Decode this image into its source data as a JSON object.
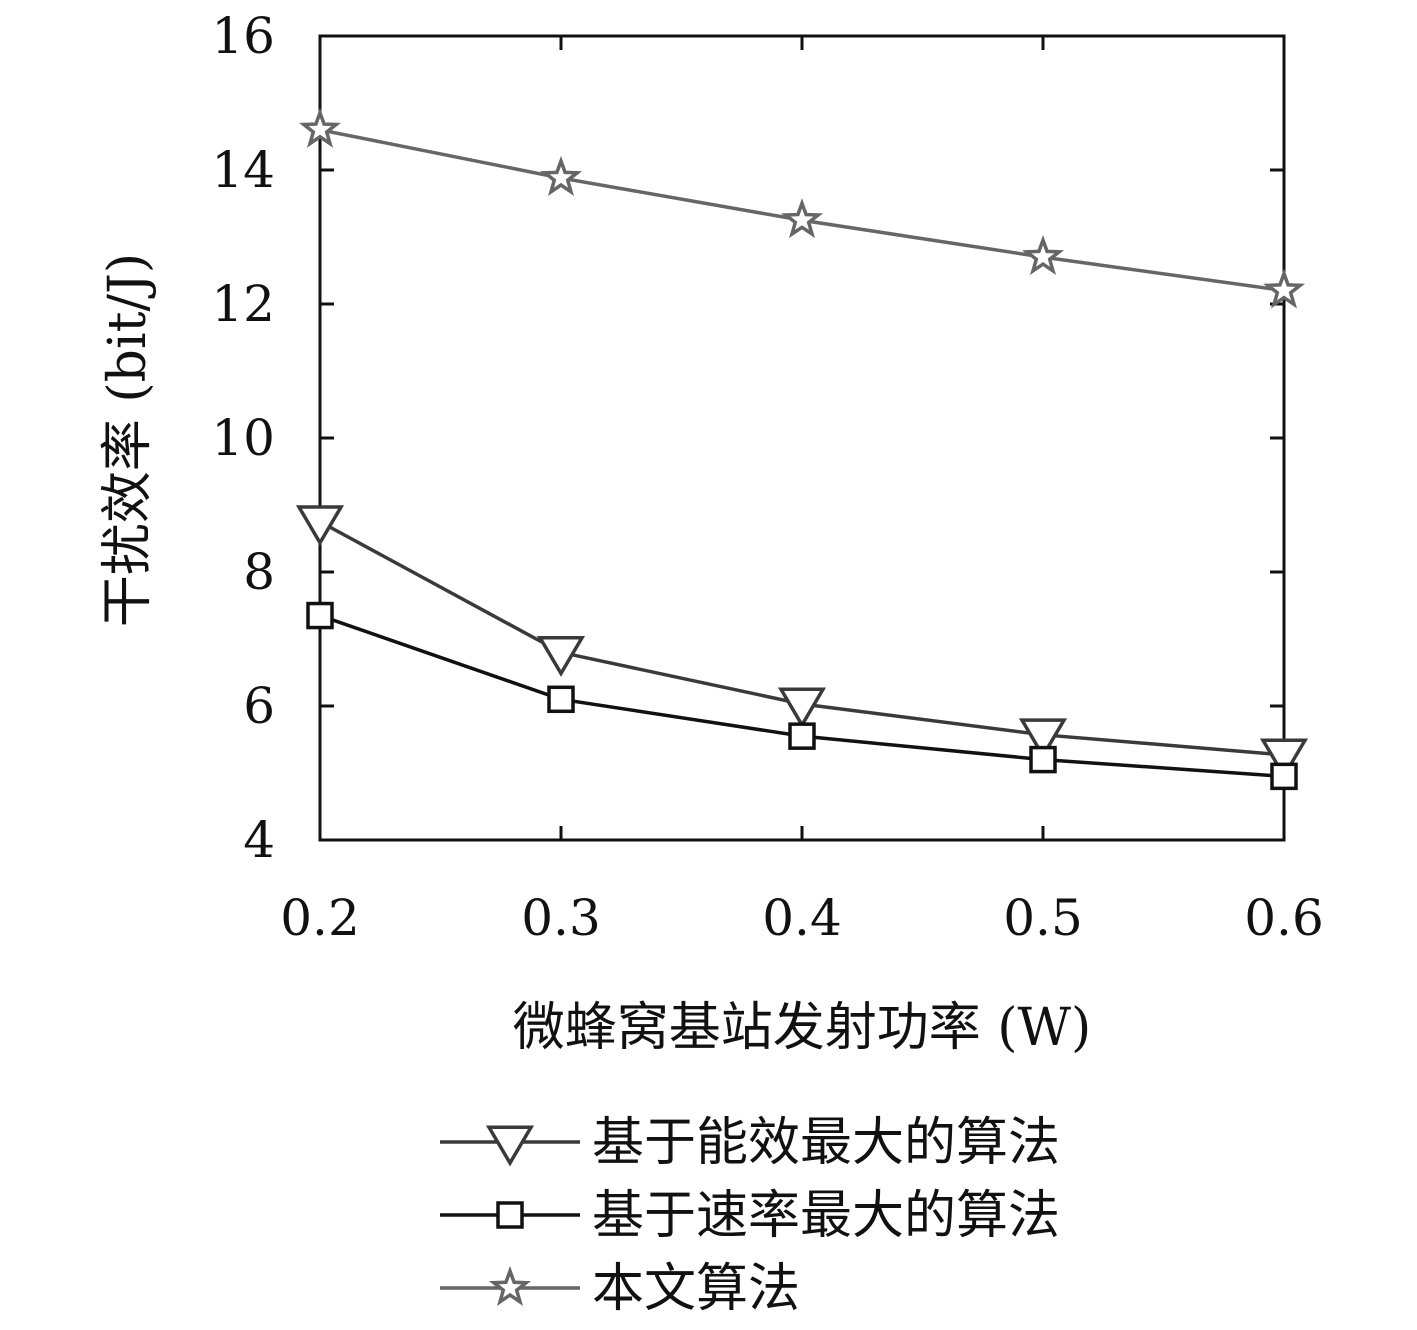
{
  "chart_data": {
    "type": "line",
    "x": [
      0.2,
      0.3,
      0.4,
      0.5,
      0.6
    ],
    "xticks": [
      "0.2",
      "0.3",
      "0.4",
      "0.5",
      "0.6"
    ],
    "yticks": [
      "4",
      "6",
      "8",
      "10",
      "12",
      "14",
      "16"
    ],
    "xlim": [
      0.2,
      0.6
    ],
    "ylim": [
      4,
      16
    ],
    "xlabel": "微蜂窝基站发射功率 (W)",
    "ylabel": "干扰效率 (bit/J)",
    "grid": false,
    "legend_position": "below",
    "series": [
      {
        "name": "基于能效最大的算法",
        "marker": "triangle-down",
        "color": "#3a3a3a",
        "values": [
          8.75,
          6.8,
          6.03,
          5.57,
          5.27
        ]
      },
      {
        "name": "基于速率最大的算法",
        "marker": "square",
        "color": "#111111",
        "values": [
          7.35,
          6.1,
          5.55,
          5.2,
          4.95
        ]
      },
      {
        "name": "本文算法",
        "marker": "star",
        "color": "#666666",
        "values": [
          14.6,
          13.88,
          13.25,
          12.7,
          12.2
        ]
      }
    ]
  }
}
